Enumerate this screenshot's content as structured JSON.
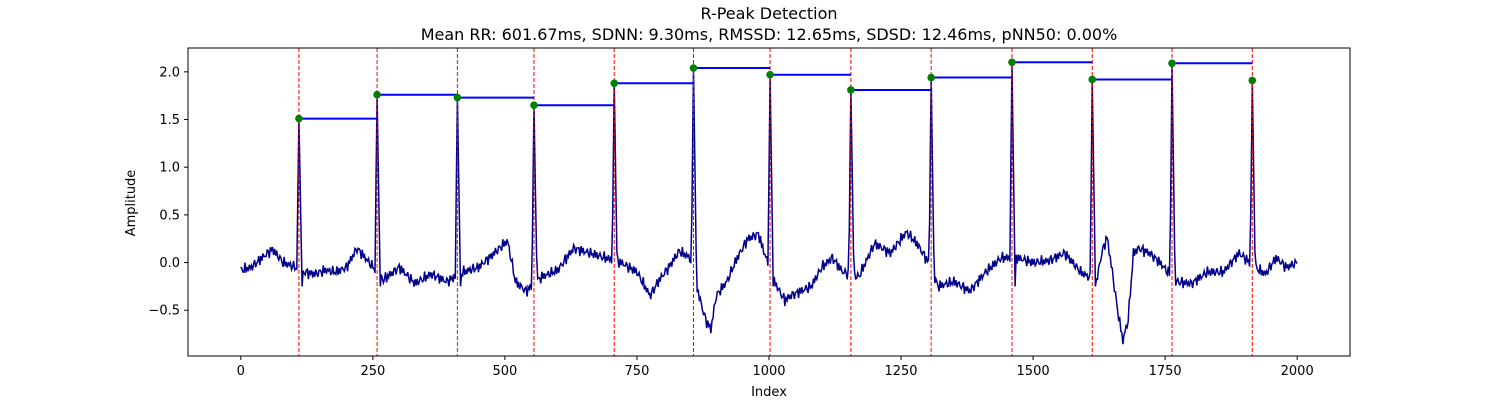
{
  "chart_data": {
    "type": "line",
    "title": "R-Peak Detection",
    "subtitle": "Mean RR: 601.67ms, SDNN: 9.30ms, RMSSD: 12.65ms, SDSD: 12.46ms, pNN50: 0.00%",
    "xlabel": "Index",
    "ylabel": "Amplitude",
    "xlim": [
      -100,
      2100
    ],
    "ylim": [
      -0.98,
      2.25
    ],
    "x_ticks": [
      0,
      250,
      500,
      750,
      1000,
      1250,
      1500,
      1750,
      2000
    ],
    "x_tick_labels": [
      "0",
      "250",
      "500",
      "750",
      "1000",
      "1250",
      "1500",
      "1750",
      "2000"
    ],
    "y_ticks": [
      -0.5,
      0.0,
      0.5,
      1.0,
      1.5,
      2.0
    ],
    "y_tick_labels": [
      "−0.5",
      "0.0",
      "0.5",
      "1.0",
      "1.5",
      "2.0"
    ],
    "grid": false,
    "colors": {
      "signal": "#00008b",
      "peak_marker": "#008000",
      "peak_line": "#ff0000",
      "rr_segment": "#0000ff"
    },
    "r_peaks": {
      "x": [
        110,
        258,
        410,
        555,
        707,
        857,
        1002,
        1155,
        1307,
        1460,
        1612,
        1763,
        1915
      ],
      "y": [
        1.51,
        1.76,
        1.73,
        1.65,
        1.88,
        2.04,
        1.97,
        1.81,
        1.94,
        2.1,
        1.92,
        2.09,
        1.91
      ]
    },
    "signal_anchors": {
      "x": [
        0,
        20,
        40,
        60,
        80,
        100,
        120,
        140,
        160,
        180,
        200,
        220,
        240,
        270,
        300,
        330,
        360,
        390,
        420,
        450,
        480,
        505,
        520,
        540,
        570,
        600,
        630,
        660,
        690,
        720,
        750,
        775,
        790,
        810,
        830,
        850,
        870,
        880,
        890,
        900,
        920,
        940,
        960,
        980,
        990,
        1010,
        1030,
        1040,
        1060,
        1080,
        1100,
        1120,
        1140,
        1170,
        1200,
        1230,
        1260,
        1280,
        1300,
        1320,
        1350,
        1380,
        1410,
        1440,
        1470,
        1500,
        1530,
        1560,
        1590,
        1620,
        1630,
        1640,
        1650,
        1660,
        1670,
        1680,
        1690,
        1700,
        1720,
        1740,
        1770,
        1800,
        1830,
        1860,
        1890,
        1920,
        1940,
        1960,
        1980,
        2000
      ],
      "y": [
        -0.08,
        -0.05,
        0.05,
        0.14,
        0.0,
        -0.04,
        -0.1,
        -0.12,
        -0.08,
        -0.1,
        -0.05,
        0.15,
        0.02,
        -0.18,
        -0.05,
        -0.22,
        -0.12,
        -0.2,
        -0.1,
        -0.05,
        0.1,
        0.23,
        -0.2,
        -0.3,
        -0.15,
        -0.08,
        0.15,
        0.1,
        0.05,
        0.0,
        -0.1,
        -0.35,
        -0.2,
        -0.05,
        0.12,
        0.05,
        -0.4,
        -0.6,
        -0.7,
        -0.35,
        -0.2,
        0.05,
        0.25,
        0.3,
        0.12,
        -0.2,
        -0.4,
        -0.35,
        -0.3,
        -0.25,
        -0.05,
        0.05,
        -0.1,
        -0.15,
        0.2,
        0.1,
        0.32,
        0.2,
        0.02,
        -0.25,
        -0.2,
        -0.3,
        -0.1,
        0.05,
        0.05,
        0.0,
        0.02,
        0.1,
        -0.1,
        -0.2,
        0.1,
        0.27,
        -0.1,
        -0.5,
        -0.82,
        -0.6,
        0.1,
        0.15,
        0.1,
        0.0,
        -0.2,
        -0.22,
        -0.1,
        -0.1,
        0.1,
        -0.05,
        -0.12,
        0.05,
        -0.05,
        0.0
      ]
    }
  }
}
